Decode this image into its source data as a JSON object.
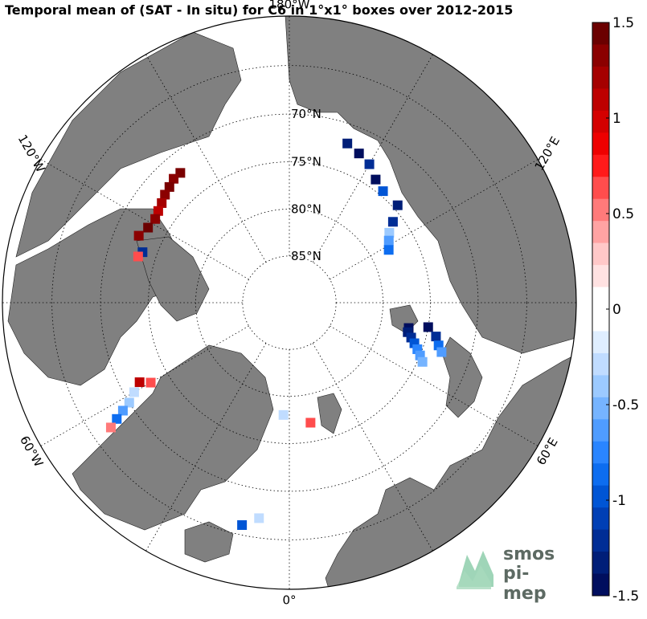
{
  "title": "Temporal mean of (SAT - In situ) for C6 in 1°x1° boxes over 2012-2015",
  "map": {
    "projection": "north polar stereographic",
    "land_color": "#808080",
    "ocean_color": "#ffffff",
    "longitude_labels": [
      {
        "text": "180°W",
        "lon": 180
      },
      {
        "text": "120°E",
        "lon": 120
      },
      {
        "text": "60°E",
        "lon": 60
      },
      {
        "text": "0°",
        "lon": 0
      },
      {
        "text": "60°W",
        "lon": -60
      },
      {
        "text": "120°W",
        "lon": -120
      }
    ],
    "latitude_labels": [
      {
        "text": "70°N",
        "lat": 70
      },
      {
        "text": "75°N",
        "lat": 75
      },
      {
        "text": "80°N",
        "lat": 80
      },
      {
        "text": "85°N",
        "lat": 85
      }
    ],
    "gridlines": "dotted"
  },
  "colorbar": {
    "min": -1.5,
    "max": 1.5,
    "tick_labels": [
      "1.5",
      "1",
      "0.5",
      "0",
      "-0.5",
      "-1",
      "-1.5"
    ],
    "colors": [
      "#6b0000",
      "#8b0000",
      "#a50000",
      "#bd0000",
      "#d40000",
      "#ee0000",
      "#ff1a1a",
      "#ff4d4d",
      "#ff7a7a",
      "#ffa3a3",
      "#ffc8c8",
      "#ffe2e2",
      "#ffffff",
      "#ffffff",
      "#dfeeff",
      "#c0dcff",
      "#9ccaff",
      "#76b4ff",
      "#4f9cff",
      "#2a85ff",
      "#0d6df0",
      "#0055d5",
      "#003fb5",
      "#002d95",
      "#001e78",
      "#000e5e"
    ]
  },
  "logo": {
    "line1": "smos",
    "line2": "pi-mep"
  }
}
